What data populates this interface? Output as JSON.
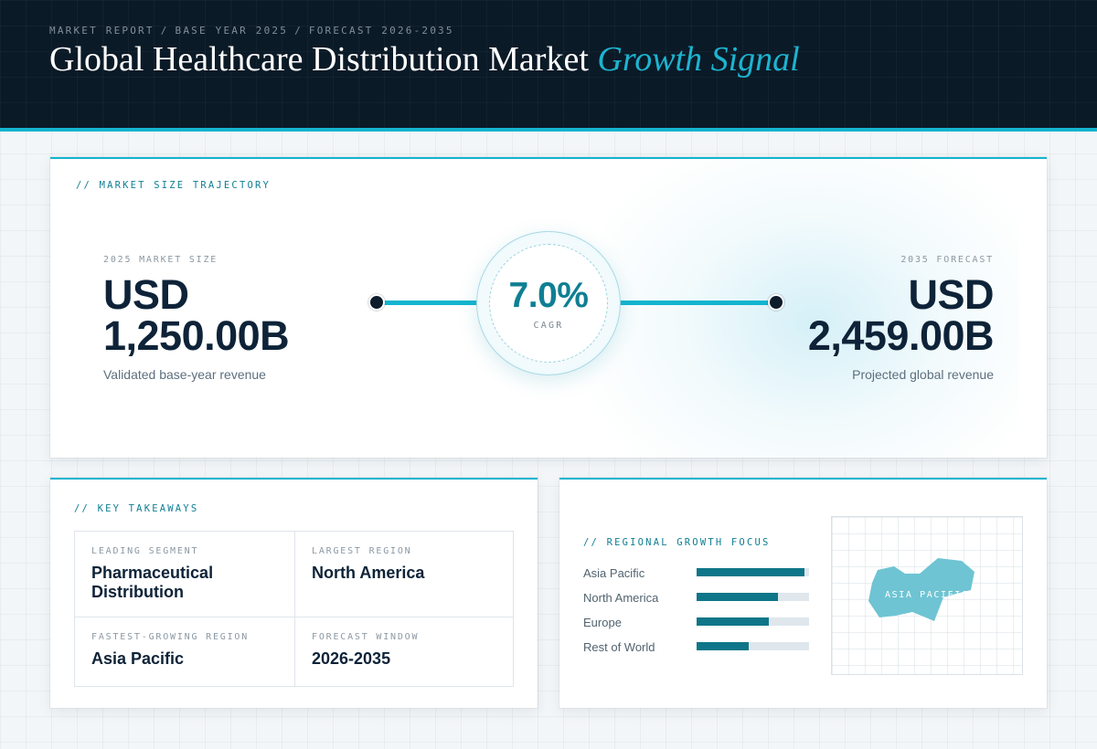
{
  "header": {
    "eyebrow": [
      "MARKET REPORT",
      "BASE YEAR 2025",
      "FORECAST 2026-2035"
    ],
    "eyebrow_separator": "/",
    "title_main": "Global Healthcare Distribution Market",
    "title_accent": "Growth Signal"
  },
  "trajectory": {
    "section_label": "// MARKET SIZE TRAJECTORY",
    "start": {
      "label": "2025 MARKET SIZE",
      "currency": "USD",
      "value": "1,250.00B",
      "caption": "Validated base-year revenue"
    },
    "cagr": {
      "value": "7.0%",
      "label": "CAGR"
    },
    "end": {
      "label": "2035 FORECAST",
      "currency": "USD",
      "value": "2,459.00B",
      "caption": "Projected global revenue"
    }
  },
  "takeaways": {
    "section_label": "// KEY TAKEAWAYS",
    "items": [
      {
        "label": "LEADING SEGMENT",
        "value": "Pharmaceutical Distribution"
      },
      {
        "label": "LARGEST REGION",
        "value": "North America"
      },
      {
        "label": "FASTEST-GROWING REGION",
        "value": "Asia Pacific"
      },
      {
        "label": "FORECAST WINDOW",
        "value": "2026-2035"
      }
    ]
  },
  "regional": {
    "section_label": "// REGIONAL GROWTH FOCUS",
    "regions": [
      {
        "name": "Asia Pacific",
        "level": 0.96
      },
      {
        "name": "North America",
        "level": 0.72
      },
      {
        "name": "Europe",
        "level": 0.64
      },
      {
        "name": "Rest of World",
        "level": 0.46
      }
    ],
    "map_label": "ASIA PACIFIC"
  },
  "colors": {
    "accent": "#13b4cf",
    "accent_dark": "#0f7f93",
    "header_bg": "#0b1a27",
    "bar_fill": "#0e7688",
    "bar_track": "#dfe7ed",
    "map_region": "#6ec4d3"
  }
}
